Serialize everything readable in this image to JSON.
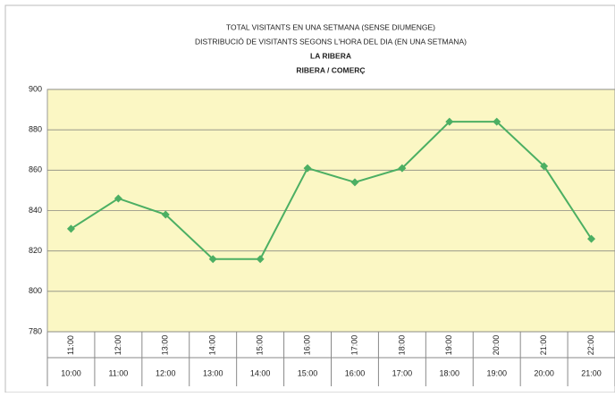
{
  "chart_data": {
    "type": "line",
    "title": "TOTAL VISITANTS EN UNA SETMANA (SENSE DIUMENGE)",
    "subtitle": "DISTRIBUCIÓ DE VISITANTS SEGONS L'HORA DEL DIA (EN UNA SETMANA)",
    "subtitle2": "LA RIBERA",
    "subtitle3": "RIBERA / COMERÇ",
    "categories": [
      "10:00",
      "11:00",
      "12:00",
      "13:00",
      "14:00",
      "15:00",
      "16:00",
      "17:00",
      "18:00",
      "19:00",
      "20:00",
      "21:00"
    ],
    "category_ends": [
      "11:00",
      "12:00",
      "13:00",
      "14:00",
      "15:00",
      "16:00",
      "17:00",
      "18:00",
      "19:00",
      "20:00",
      "21:00",
      "22:00"
    ],
    "values": [
      831,
      846,
      838,
      816,
      816,
      861,
      854,
      861,
      884,
      884,
      862,
      826
    ],
    "color": "#4caf63",
    "ylim": [
      780,
      900
    ],
    "yticks": [
      780,
      800,
      820,
      840,
      860,
      880,
      900
    ],
    "grid": true
  }
}
